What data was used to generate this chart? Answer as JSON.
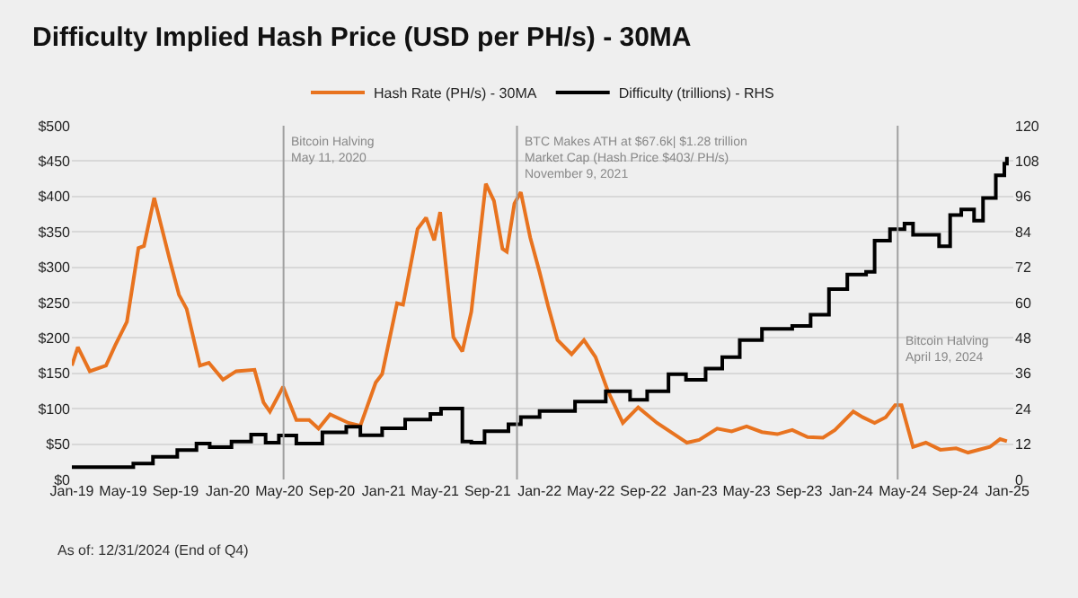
{
  "chart_data": {
    "type": "line",
    "title": "Difficulty Implied Hash Price (USD per PH/s) - 30MA",
    "series": [
      {
        "name": "Hash Rate (PH/s) - 30MA",
        "color": "#e8731f",
        "x": [
          "2019-01-01",
          "2019-01-15",
          "2019-02-12",
          "2019-03-22",
          "2019-04-12",
          "2019-05-10",
          "2019-06-06",
          "2019-06-19",
          "2019-07-13",
          "2019-08-19",
          "2019-09-09",
          "2019-09-27",
          "2019-10-28",
          "2019-11-18",
          "2019-12-21",
          "2020-01-21",
          "2020-03-04",
          "2020-03-25",
          "2020-04-09",
          "2020-05-10",
          "2020-06-10",
          "2020-07-10",
          "2020-08-01",
          "2020-08-28",
          "2020-10-10",
          "2020-11-07",
          "2020-12-13",
          "2020-12-28",
          "2021-02-01",
          "2021-02-15",
          "2021-03-21",
          "2021-04-10",
          "2021-04-29",
          "2021-05-13",
          "2021-06-13",
          "2021-07-04",
          "2021-07-25",
          "2021-08-28",
          "2021-09-16",
          "2021-10-06",
          "2021-10-16",
          "2021-11-03",
          "2021-11-18",
          "2021-12-10",
          "2022-01-01",
          "2022-01-21",
          "2022-02-12",
          "2022-03-17",
          "2022-04-15",
          "2022-05-12",
          "2022-06-10",
          "2022-07-15",
          "2022-08-20",
          "2022-10-03",
          "2022-12-12",
          "2023-01-10",
          "2023-02-21",
          "2023-03-27",
          "2023-05-01",
          "2023-06-06",
          "2023-07-12",
          "2023-08-16",
          "2023-09-21",
          "2023-10-27",
          "2023-11-24",
          "2024-01-06",
          "2024-01-28",
          "2024-02-25",
          "2024-03-22",
          "2024-04-13",
          "2024-04-28",
          "2024-05-25",
          "2024-06-24",
          "2024-07-28",
          "2024-09-03",
          "2024-10-01",
          "2024-11-21",
          "2024-12-15",
          "2024-12-31"
        ],
        "values": [
          161,
          187,
          153,
          161,
          189,
          223,
          327,
          330,
          398,
          309,
          261,
          241,
          161,
          165,
          141,
          153,
          155,
          109,
          96,
          131,
          84,
          84,
          72,
          92,
          80,
          76,
          137,
          149,
          249,
          247,
          354,
          370,
          338,
          378,
          201,
          181,
          237,
          418,
          394,
          326,
          322,
          390,
          406,
          342,
          293,
          245,
          197,
          177,
          197,
          173,
          125,
          80,
          102,
          80,
          52,
          56,
          72,
          68,
          75,
          67,
          64,
          70,
          60,
          59,
          70,
          96,
          88,
          80,
          88,
          105,
          105,
          46,
          52,
          42,
          44,
          38,
          46,
          57,
          54
        ]
      },
      {
        "name": "Difficulty (trillions) - RHS",
        "color": "#000000",
        "type": "step",
        "axis": "y2",
        "x": [
          "2019-01-01",
          "2019-05-25",
          "2019-07-10",
          "2019-09-05",
          "2019-10-20",
          "2019-11-20",
          "2020-01-10",
          "2020-02-25",
          "2020-03-30",
          "2020-04-30",
          "2020-06-10",
          "2020-08-10",
          "2020-10-05",
          "2020-11-07",
          "2020-12-28",
          "2021-02-20",
          "2021-04-20",
          "2021-05-15",
          "2021-07-04",
          "2021-07-25",
          "2021-08-25",
          "2021-10-20",
          "2021-11-18",
          "2022-01-01",
          "2022-03-25",
          "2022-06-05",
          "2022-08-01",
          "2022-09-10",
          "2022-10-30",
          "2022-12-10",
          "2023-01-25",
          "2023-03-05",
          "2023-04-15",
          "2023-06-06",
          "2023-08-16",
          "2023-09-28",
          "2023-11-10",
          "2023-12-23",
          "2024-02-05",
          "2024-02-25",
          "2024-04-01",
          "2024-05-05",
          "2024-05-25",
          "2024-07-10",
          "2024-07-25",
          "2024-08-20",
          "2024-09-15",
          "2024-10-15",
          "2024-11-05",
          "2024-12-05",
          "2024-12-25",
          "2024-12-31"
        ],
        "values": [
          4.2,
          5.4,
          7.7,
          10.0,
          12.2,
          11.0,
          12.9,
          15.2,
          12.5,
          14.9,
          12.2,
          16.0,
          17.9,
          15.0,
          17.4,
          20.3,
          22.2,
          24.1,
          12.9,
          12.5,
          16.4,
          18.7,
          21.2,
          23.2,
          26.4,
          29.9,
          27.0,
          29.9,
          35.7,
          33.8,
          37.6,
          41.5,
          47.3,
          51.1,
          52.1,
          55.9,
          64.6,
          69.5,
          70.4,
          81.0,
          84.9,
          86.8,
          83.0,
          83.0,
          79.1,
          89.7,
          91.6,
          87.8,
          95.5,
          103.2,
          107.1,
          109.4
        ]
      }
    ],
    "xlim": [
      "2019-01-01",
      "2025-01-15"
    ],
    "xticks": [
      {
        "value": "2019-01-01",
        "label": "Jan-19"
      },
      {
        "value": "2019-05-01",
        "label": "May-19"
      },
      {
        "value": "2019-09-01",
        "label": "Sep-19"
      },
      {
        "value": "2020-01-01",
        "label": "Jan-20"
      },
      {
        "value": "2020-05-01",
        "label": "May-20"
      },
      {
        "value": "2020-09-01",
        "label": "Sep-20"
      },
      {
        "value": "2021-01-01",
        "label": "Jan-21"
      },
      {
        "value": "2021-05-01",
        "label": "May-21"
      },
      {
        "value": "2021-09-01",
        "label": "Sep-21"
      },
      {
        "value": "2022-01-01",
        "label": "Jan-22"
      },
      {
        "value": "2022-05-01",
        "label": "May-22"
      },
      {
        "value": "2022-09-01",
        "label": "Sep-22"
      },
      {
        "value": "2023-01-01",
        "label": "Jan-23"
      },
      {
        "value": "2023-05-01",
        "label": "May-23"
      },
      {
        "value": "2023-09-01",
        "label": "Sep-23"
      },
      {
        "value": "2024-01-01",
        "label": "Jan-24"
      },
      {
        "value": "2024-05-01",
        "label": "May-24"
      },
      {
        "value": "2024-09-01",
        "label": "Sep-24"
      },
      {
        "value": "2025-01-01",
        "label": "Jan-25"
      }
    ],
    "ylim": [
      0,
      500
    ],
    "yticks": [
      {
        "value": 0,
        "label": "$0"
      },
      {
        "value": 50,
        "label": "$50"
      },
      {
        "value": 100,
        "label": "$100"
      },
      {
        "value": 150,
        "label": "$150"
      },
      {
        "value": 200,
        "label": "$200"
      },
      {
        "value": 250,
        "label": "$250"
      },
      {
        "value": 300,
        "label": "$300"
      },
      {
        "value": 350,
        "label": "$350"
      },
      {
        "value": 400,
        "label": "$400"
      },
      {
        "value": 450,
        "label": "$450"
      },
      {
        "value": 500,
        "label": "$500"
      }
    ],
    "y2lim": [
      0,
      120
    ],
    "y2ticks": [
      0,
      12,
      24,
      36,
      48,
      60,
      72,
      84,
      96,
      108,
      120
    ],
    "ref_lines": [
      {
        "axis": "x",
        "value": "2020-05-11",
        "label": "Bitcoin Halving\nMay 11, 2020",
        "color": "#a0a0a0"
      },
      {
        "axis": "x",
        "value": "2021-11-09",
        "label": "BTC Makes ATH at $67.6k| $1.28 trillion\nMarket Cap (Hash Price $403/ PH/s)\nNovember 9, 2021",
        "color": "#a0a0a0"
      },
      {
        "axis": "x",
        "value": "2024-04-19",
        "label": "Bitcoin Halving\nApril 19, 2024",
        "color": "#a0a0a0"
      }
    ],
    "annotations": [
      "As of: 12/31/2024 (End of Q4)"
    ],
    "grid": "y",
    "legend": "top",
    "marker": "none",
    "line_style": "solid"
  }
}
